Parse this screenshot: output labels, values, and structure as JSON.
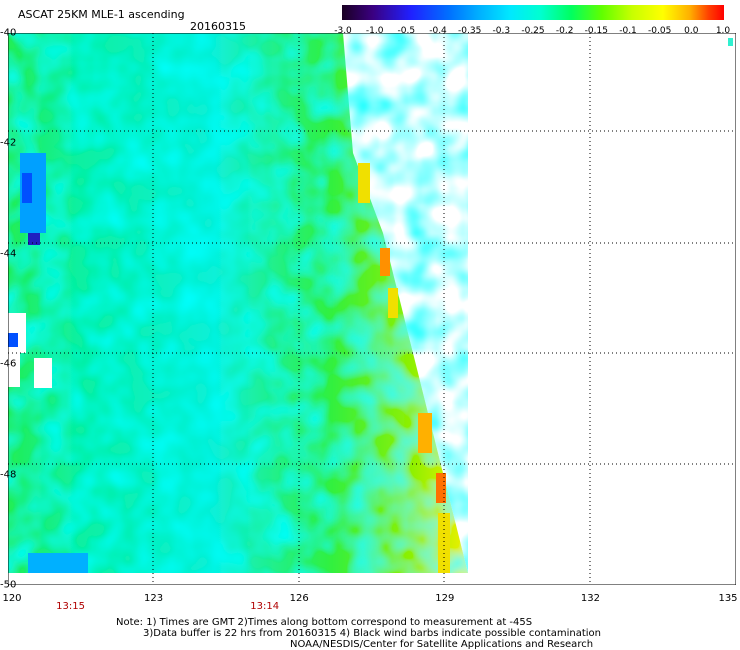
{
  "header": {
    "title": "ASCAT 25KM MLE-1 ascending",
    "date": "20160315"
  },
  "colorbar": {
    "labels": [
      "-3.0",
      "-1.0",
      "-0.5",
      "-0.4",
      "-0.35",
      "-0.3",
      "-0.25",
      "-0.2",
      "-0.15",
      "-0.1",
      "-0.05",
      "0.0",
      "1.0"
    ],
    "colors": [
      "#1a0022",
      "#3a0080",
      "#2020ff",
      "#0070ff",
      "#00b0ff",
      "#00e8ff",
      "#00ffd0",
      "#00ff60",
      "#60ff00",
      "#c8ff00",
      "#ffff00",
      "#ffb000",
      "#ff4000",
      "#ff0000"
    ]
  },
  "map": {
    "lat_labels": [
      "-40",
      "-42",
      "-44",
      "-46",
      "-48",
      "-50"
    ],
    "lon_labels": [
      "120",
      "123",
      "126",
      "129",
      "132",
      "135"
    ],
    "lat_range": [
      -50,
      -40
    ],
    "lon_range": [
      120,
      135
    ],
    "times": [
      {
        "label": "13:15",
        "lon": 121
      },
      {
        "label": "13:14",
        "lon": 125
      }
    ]
  },
  "notes": {
    "line1": "Note: 1) Times are GMT 2)Times along bottom correspond to measurement at -45S",
    "line2": "3)Data buffer is 22 hrs from 20160315 4) Black wind barbs indicate possible contamination",
    "line3": "NOAA/NESDIS/Center for Satellite Applications and Research"
  }
}
